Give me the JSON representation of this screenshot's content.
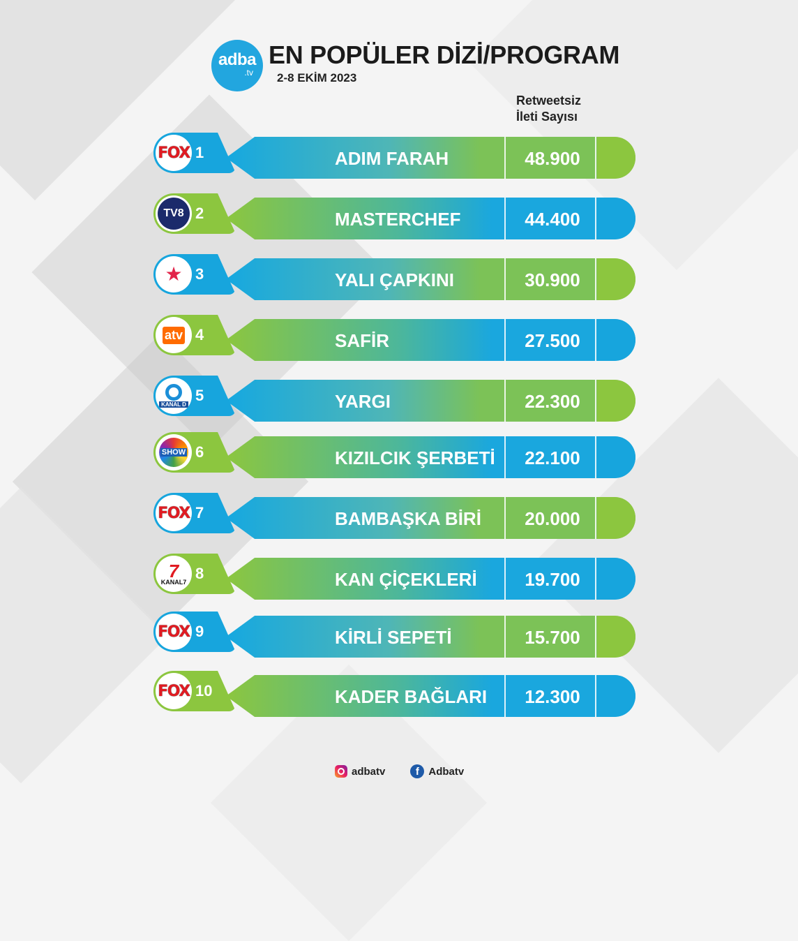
{
  "header": {
    "logo_main": "adba",
    "logo_sub": ".tv",
    "title": "EN POPÜLER DİZİ/PROGRAM",
    "date": "2-8 EKİM 2023",
    "column_header_line1": "Retweetsiz",
    "column_header_line2": "İleti Sayısı"
  },
  "rows": [
    {
      "rank": "1",
      "channel": "FOX",
      "program": "ADIM FARAH",
      "count": "48.900"
    },
    {
      "rank": "2",
      "channel": "TV8",
      "program": "MASTERCHEF",
      "count": "44.400"
    },
    {
      "rank": "3",
      "channel": "STAR",
      "program": "YALI ÇAPKINI",
      "count": "30.900"
    },
    {
      "rank": "4",
      "channel": "atv",
      "program": "SAFİR",
      "count": "27.500"
    },
    {
      "rank": "5",
      "channel": "KANAL D",
      "program": "YARGI",
      "count": "22.300"
    },
    {
      "rank": "6",
      "channel": "SHOW",
      "program": "KIZILCIK ŞERBETİ",
      "count": "22.100"
    },
    {
      "rank": "7",
      "channel": "FOX",
      "program": "BAMBAŞKA BİRİ",
      "count": "20.000"
    },
    {
      "rank": "8",
      "channel": "KANAL7",
      "program": "KAN ÇİÇEKLERİ",
      "count": "19.700"
    },
    {
      "rank": "9",
      "channel": "FOX",
      "program": "KİRLİ SEPETİ",
      "count": "15.700"
    },
    {
      "rank": "10",
      "channel": "FOX",
      "program": "KADER BAĞLARI",
      "count": "12.300"
    }
  ],
  "footer": {
    "instagram": "adbatv",
    "facebook": "Adbatv"
  },
  "colors": {
    "blue": "#17a5dd",
    "green": "#8cc63f"
  }
}
